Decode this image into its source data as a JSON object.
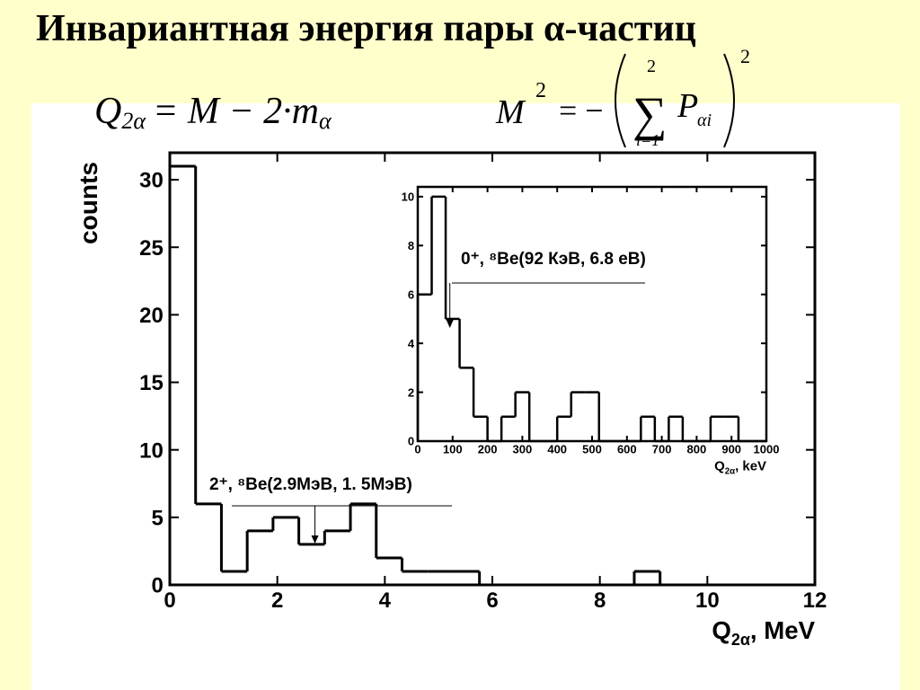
{
  "title": "Инвариантная энергия пары α-частиц",
  "formulas": [
    {
      "lhs": "Q",
      "lhs_sub": "2α",
      "rhs": "= M − 2·m",
      "rhs_sub": "α"
    },
    {
      "lhs": "M",
      "lhs_sup": "2",
      "rhs": "= −",
      "sum": "∑",
      "sum_top": "2",
      "sum_bottom": "i=1",
      "term": "P",
      "term_sub": "αi",
      "outer_sup": "2"
    }
  ],
  "chart_data": [
    {
      "type": "histogram",
      "ylabel": "counts",
      "xlabel": {
        "symbol": "Q",
        "sub": "2α",
        "unit": ", MeV"
      },
      "bins": [
        0,
        0.48,
        0.96,
        1.44,
        1.92,
        2.4,
        2.88,
        3.36,
        3.84,
        4.32,
        4.8,
        5.28,
        5.76,
        6.24,
        6.72,
        7.2,
        7.68,
        8.16,
        8.64,
        9.12,
        9.6,
        10.08,
        10.56,
        11.04,
        11.52,
        12
      ],
      "values": [
        31,
        6,
        1,
        4,
        5,
        3,
        4,
        6,
        2,
        1,
        1,
        1,
        0,
        0,
        0,
        0,
        0,
        0,
        1,
        0,
        0,
        0,
        0,
        0,
        0
      ],
      "color": "#000000",
      "xlim": [
        0,
        12
      ],
      "ylim": [
        0,
        32
      ],
      "xticks": [
        0,
        2,
        4,
        6,
        8,
        10,
        12
      ],
      "yticks": [
        0,
        5,
        10,
        15,
        20,
        25,
        30
      ],
      "annotation": {
        "text": "2⁺, ⁸Be(2.9МэВ, 1. 5МэВ)",
        "x": 2.7
      }
    },
    {
      "type": "histogram",
      "xlabel": {
        "symbol": "Q",
        "sub": "2α",
        "unit": ", keV"
      },
      "bins": [
        0,
        40,
        80,
        120,
        160,
        200,
        240,
        280,
        320,
        360,
        400,
        440,
        480,
        520,
        560,
        600,
        640,
        680,
        720,
        760,
        800,
        840,
        880,
        920,
        960,
        1000
      ],
      "values": [
        6,
        10,
        5,
        3,
        1,
        0,
        1,
        2,
        0,
        0,
        1,
        2,
        2,
        0,
        0,
        0,
        1,
        0,
        1,
        0,
        0,
        1,
        1,
        0,
        0
      ],
      "color": "#000000",
      "xlim": [
        0,
        1000
      ],
      "ylim": [
        0,
        10.4
      ],
      "xticks": [
        0,
        100,
        200,
        300,
        400,
        500,
        600,
        700,
        800,
        900,
        1000
      ],
      "yticks": [
        0,
        2,
        4,
        6,
        8,
        10
      ],
      "annotation": {
        "text": "0⁺, ⁸Be(92 КэВ, 6.8 еВ)",
        "x": 92
      }
    }
  ]
}
